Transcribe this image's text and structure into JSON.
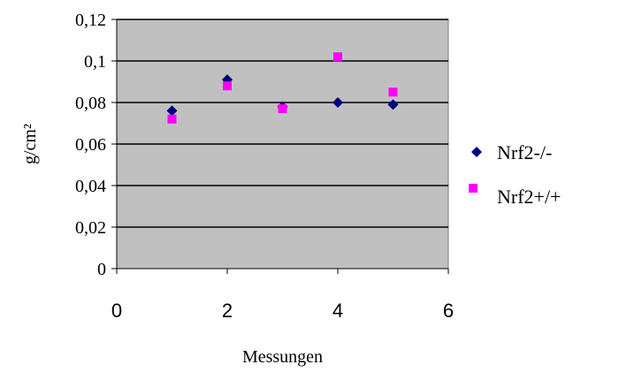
{
  "chart_data": {
    "type": "scatter",
    "title": "",
    "xlabel": "Messungen",
    "ylabel": "g/cm²",
    "xlim": [
      0,
      6
    ],
    "ylim": [
      0,
      0.12
    ],
    "x_ticks": [
      "0",
      "2",
      "4",
      "6"
    ],
    "y_ticks": [
      "0",
      "0,02",
      "0,04",
      "0,06",
      "0,08",
      "0,1",
      "0,12"
    ],
    "grid": "horizontal",
    "legend_position": "right",
    "plot_background": "#C0C0C0",
    "series": [
      {
        "name": "Nrf2-/-",
        "marker": "diamond",
        "color": "#000080",
        "x": [
          1,
          2,
          3,
          4,
          5
        ],
        "y": [
          0.076,
          0.091,
          0.078,
          0.08,
          0.079
        ]
      },
      {
        "name": "Nrf2+/+",
        "marker": "square",
        "color": "#FF00FF",
        "x": [
          1,
          2,
          3,
          4,
          5
        ],
        "y": [
          0.072,
          0.088,
          0.077,
          0.102,
          0.085
        ]
      }
    ]
  }
}
